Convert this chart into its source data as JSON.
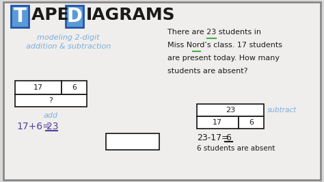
{
  "bg_color": "#d8d8d8",
  "whiteboard_color": "#f0eeec",
  "title_T": "T",
  "title_rest": "APE ",
  "title_D": "D",
  "title_iagrams": "IAGRAMS",
  "subtitle_line1": "modeling 2-digit",
  "subtitle_line2": "addition & subtraction",
  "subtitle_color": "#7aaee0",
  "right_text_line1": "There are 23 students in",
  "right_text_line2": "Miss Nord’s class. 17 students",
  "right_text_line3": "are present today. How many",
  "right_text_line4": "students are absent?",
  "add_label": "add",
  "add_label_color": "#7aaee0",
  "add_eq": "17+6=",
  "add_eq_ans": "23",
  "add_eq_color": "#5040a0",
  "sub_label": "subtract",
  "sub_label_color": "#7aaee0",
  "sub_eq": "23-17=",
  "sub_eq_ans": "6",
  "sub_eq_color": "#1a1a1a",
  "sub_ans_text": "6 students are absent",
  "tape1_left_val": "17",
  "tape1_right_val": "6",
  "tape1_bottom_val": "?",
  "tape2_top_val": "23",
  "tape2_left_val": "17",
  "tape2_right_val": "6",
  "green_underline_color": "#4aaa44",
  "black_color": "#1a1a1a",
  "blue_color": "#5b9bd5",
  "blue_border_color": "#2255aa",
  "right_text_color": "#1a1a1a",
  "border_dark": "#111111"
}
